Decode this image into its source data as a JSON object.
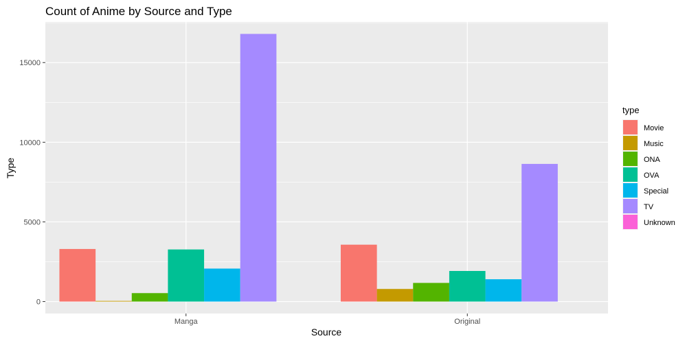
{
  "chart_data": {
    "type": "bar",
    "title": "Count of Anime by Source and Type",
    "xlabel": "Source",
    "ylabel": "Type",
    "categories": [
      "Manga",
      "Original"
    ],
    "y_ticks": [
      0,
      5000,
      10000,
      15000
    ],
    "y_tick_labels": [
      "0",
      "5000",
      "10000",
      "15000"
    ],
    "ylim": [
      -750,
      17550
    ],
    "grid": true,
    "legend": {
      "title": "type",
      "placement": "right"
    },
    "series": [
      {
        "name": "Movie",
        "color": "#F8766D",
        "values": [
          3300,
          3570
        ]
      },
      {
        "name": "Music",
        "color": "#C49A00",
        "values": [
          40,
          790
        ]
      },
      {
        "name": "ONA",
        "color": "#53B400",
        "values": [
          530,
          1170
        ]
      },
      {
        "name": "OVA",
        "color": "#00C094",
        "values": [
          3270,
          1920
        ]
      },
      {
        "name": "Special",
        "color": "#00B6EB",
        "values": [
          2070,
          1400
        ]
      },
      {
        "name": "TV",
        "color": "#A58AFF",
        "values": [
          16800,
          8640
        ]
      },
      {
        "name": "Unknown",
        "color": "#FB61D7",
        "values": [
          0,
          0
        ]
      }
    ]
  }
}
